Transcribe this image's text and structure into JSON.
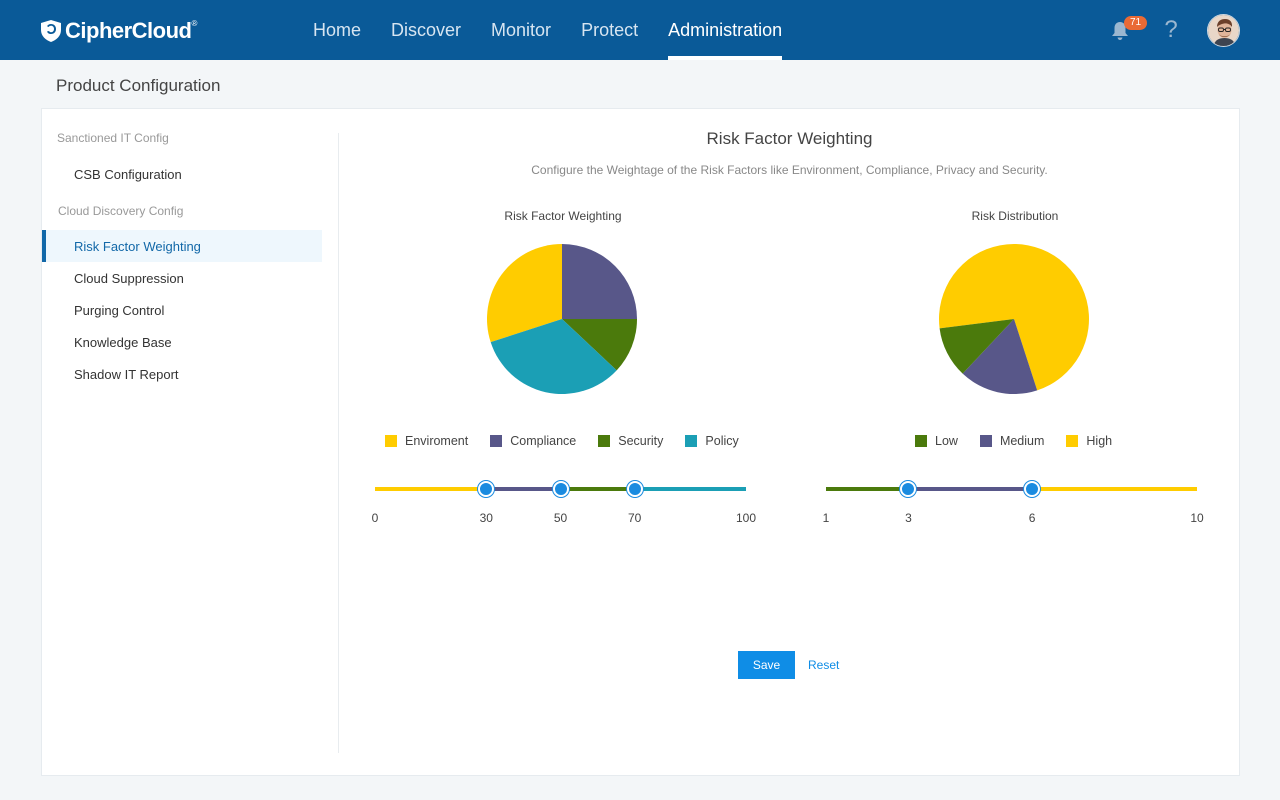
{
  "header": {
    "brand": "CipherCloud",
    "brand_mark": "®",
    "nav": [
      "Home",
      "Discover",
      "Monitor",
      "Protect",
      "Administration"
    ],
    "active_nav_index": 4,
    "notification_count": "71",
    "help_symbol": "?"
  },
  "page": {
    "title": "Product Configuration"
  },
  "sidebar": {
    "group1": "Sanctioned IT Config",
    "group1_items": [
      "CSB Configuration"
    ],
    "group2": "Cloud Discovery Config",
    "group2_items": [
      "Risk Factor Weighting",
      "Cloud Suppression",
      "Purging Control",
      "Knowledge Base",
      "Shadow IT Report"
    ],
    "active_item": "Risk Factor Weighting"
  },
  "content": {
    "title": "Risk Factor Weighting",
    "description": "Configure the Weightage of the Risk Factors like Environment, Compliance, Privacy and Security.",
    "save_label": "Save",
    "reset_label": "Reset"
  },
  "colors": {
    "yellow": "#ffcc00",
    "purple": "#585789",
    "green": "#4b7a0c",
    "teal": "#1b9fb5",
    "accent": "#0f8de6"
  },
  "chart_data": [
    {
      "type": "pie",
      "title": "Risk Factor Weighting",
      "categories": [
        "Enviroment",
        "Compliance",
        "Security",
        "Policy"
      ],
      "values": [
        30,
        25,
        12,
        33
      ],
      "colors": [
        "#ffcc00",
        "#585789",
        "#4b7a0c",
        "#1b9fb5"
      ],
      "slider": {
        "min": 0,
        "max": 100,
        "ticks": [
          0,
          30,
          50,
          70,
          100
        ],
        "handles": [
          30,
          50,
          70
        ]
      },
      "legend": "bottom"
    },
    {
      "type": "pie",
      "title": "Risk Distribution",
      "categories": [
        "Low",
        "Medium",
        "High"
      ],
      "values": [
        11,
        17,
        72
      ],
      "colors": [
        "#4b7a0c",
        "#585789",
        "#ffcc00"
      ],
      "slider": {
        "min": 1,
        "max": 10,
        "ticks": [
          1,
          3,
          6,
          10
        ],
        "handles": [
          3,
          6
        ]
      },
      "legend": "bottom"
    }
  ]
}
